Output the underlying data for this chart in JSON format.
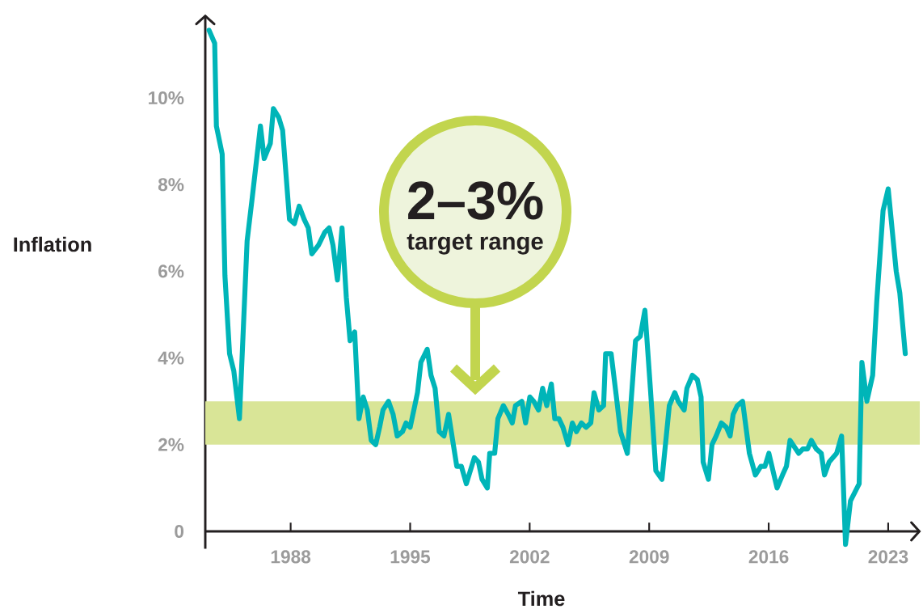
{
  "chart_data": {
    "type": "line",
    "xlabel": "Time",
    "ylabel": "Inflation",
    "annotations": [
      "2–3%",
      "target range"
    ],
    "x": [
      1983.22,
      1983.55,
      1983.65,
      1983.99,
      1984.15,
      1984.42,
      1984.67,
      1985.0,
      1985.45,
      1985.75,
      1986.23,
      1986.45,
      1986.81,
      1986.99,
      1987.3,
      1987.53,
      1987.93,
      1988.22,
      1988.5,
      1988.79,
      1989.03,
      1989.24,
      1989.63,
      1990.0,
      1990.25,
      1990.48,
      1990.74,
      1991.01,
      1991.26,
      1991.48,
      1991.75,
      1992.0,
      1992.25,
      1992.49,
      1992.72,
      1992.98,
      1993.21,
      1993.41,
      1993.73,
      1994.0,
      1994.24,
      1994.55,
      1994.76,
      1995.0,
      1995.27,
      1995.43,
      1995.63,
      1996.0,
      1996.22,
      1996.46,
      1996.7,
      1996.98,
      1997.25,
      1997.49,
      1997.73,
      1998.0,
      1998.29,
      1998.76,
      1999.0,
      1999.21,
      1999.52,
      1999.66,
      1999.95,
      2000.14,
      2000.46,
      2000.74,
      2000.98,
      2001.17,
      2001.54,
      2001.76,
      2002.01,
      2002.24,
      2002.52,
      2002.76,
      2003.0,
      2003.27,
      2003.47,
      2003.71,
      2003.95,
      2004.25,
      2004.5,
      2004.74,
      2005.03,
      2005.3,
      2005.58,
      2005.77,
      2006.05,
      2006.33,
      2006.45,
      2006.77,
      2007.08,
      2007.32,
      2007.72,
      2008.2,
      2008.48,
      2008.75,
      2009.07,
      2009.39,
      2009.75,
      2010.18,
      2010.5,
      2010.7,
      2011.05,
      2011.21,
      2011.53,
      2011.82,
      2012.04,
      2012.16,
      2012.47,
      2012.68,
      2012.92,
      2013.23,
      2013.52,
      2013.74,
      2013.92,
      2014.16,
      2014.47,
      2014.87,
      2015.22,
      2015.54,
      2015.78,
      2016.01,
      2016.49,
      2016.81,
      2017.04,
      2017.25,
      2017.76,
      2018.0,
      2018.27,
      2018.5,
      2018.79,
      2019.08,
      2019.27,
      2019.54,
      2019.98,
      2020.27,
      2020.5,
      2020.79,
      2021.3,
      2021.46,
      2021.75,
      2022.09,
      2022.33,
      2022.7,
      2023.0,
      2023.47,
      2023.68,
      2024.0
    ],
    "series": [
      {
        "color": "#00b5b8",
        "values": [
          11.56,
          11.26,
          9.35,
          8.7,
          5.9,
          4.1,
          3.7,
          2.6,
          6.7,
          7.7,
          9.35,
          8.6,
          8.95,
          9.75,
          9.55,
          9.25,
          7.2,
          7.1,
          7.5,
          7.2,
          7.0,
          6.4,
          6.6,
          6.9,
          7.0,
          6.6,
          5.8,
          7.0,
          5.4,
          4.4,
          4.6,
          2.6,
          3.1,
          2.8,
          2.1,
          2.0,
          2.4,
          2.8,
          3.0,
          2.7,
          2.2,
          2.3,
          2.5,
          2.4,
          2.9,
          3.2,
          3.9,
          4.2,
          3.6,
          3.3,
          2.3,
          2.2,
          2.7,
          2.1,
          1.5,
          1.5,
          1.1,
          1.7,
          1.6,
          1.2,
          1.0,
          1.8,
          1.8,
          2.6,
          2.9,
          2.7,
          2.5,
          2.9,
          3.0,
          2.5,
          3.1,
          3.0,
          2.8,
          3.3,
          2.9,
          3.4,
          2.6,
          2.6,
          2.4,
          2.0,
          2.5,
          2.3,
          2.5,
          2.4,
          2.5,
          3.2,
          2.8,
          2.9,
          4.1,
          4.1,
          3.1,
          2.3,
          1.8,
          4.4,
          4.5,
          5.1,
          3.3,
          1.4,
          1.2,
          2.9,
          3.2,
          3.0,
          2.8,
          3.3,
          3.6,
          3.5,
          3.1,
          1.6,
          1.2,
          2.0,
          2.2,
          2.5,
          2.4,
          2.2,
          2.7,
          2.9,
          3.0,
          1.8,
          1.3,
          1.5,
          1.5,
          1.8,
          1.0,
          1.3,
          1.5,
          2.1,
          1.8,
          1.9,
          1.9,
          2.1,
          1.9,
          1.8,
          1.3,
          1.6,
          1.8,
          2.2,
          -0.3,
          0.7,
          1.1,
          3.9,
          3.0,
          3.6,
          5.3,
          7.4,
          7.9,
          6.0,
          5.5,
          4.1
        ]
      }
    ],
    "xlim": [
      1983.0,
      2024.85
    ],
    "ylim": [
      -0.4,
      11.9
    ],
    "xticks": [
      1988,
      1995,
      2002,
      2009,
      2016,
      2023
    ],
    "yticks": [
      0,
      {
        "value": 2,
        "label": "2%"
      },
      {
        "value": 4,
        "label": "4%"
      },
      {
        "value": 6,
        "label": "6%"
      },
      {
        "value": 8,
        "label": "8%"
      },
      {
        "value": 10,
        "label": "10%"
      }
    ],
    "bands": [
      {
        "axis": "y",
        "from": 2,
        "to": 3,
        "color": "#d9e597"
      }
    ],
    "grid": false,
    "marker": "none",
    "line_style": "solid"
  }
}
